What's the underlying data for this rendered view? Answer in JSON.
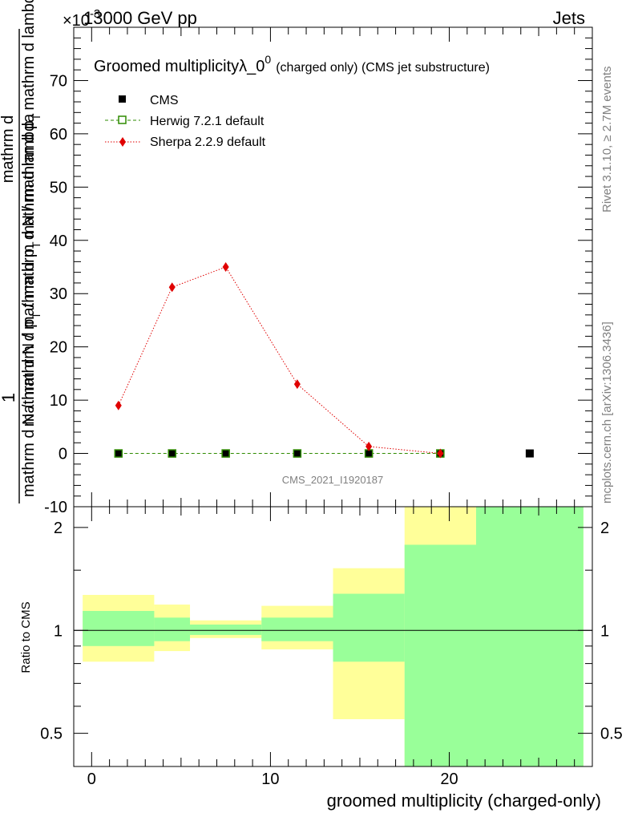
{
  "header": {
    "energy_label": "13000 GeV pp",
    "category_label": "Jets"
  },
  "side_labels": {
    "rivet": "Rivet 3.1.10, ≥ 2.7M events",
    "mcplots": "mcplots.cern.ch [arXiv:1306.3436]"
  },
  "chart_data": [
    {
      "type": "scatter",
      "panel": "main",
      "title_main": "Groomed multiplicityλ_0",
      "title_sup": "0",
      "title_suffix": "(charged only) (CMS jet substructure)",
      "ylabel_numerator": "1",
      "ylabel_numerator_full": "mathrm d",
      "ylabel_top": "mathrm d",
      "ylabel_denominator": "mathrm d N / mathrm d p",
      "ylabel_denominator_rest": "mathrm d lambda",
      "ylabel_sub": "T",
      "y_exponent_label": "×10",
      "y_exponent": "-3",
      "ylim": [
        -10,
        80
      ],
      "xlim": [
        -1,
        28
      ],
      "y_ticks": [
        -10,
        0,
        10,
        20,
        30,
        40,
        50,
        60,
        70
      ],
      "legend_position": "top-left",
      "analysis_label": "CMS_2021_I1920187",
      "series": [
        {
          "name": "CMS",
          "marker": "filled-square",
          "color": "#000000",
          "x": [
            1.5,
            4.5,
            7.5,
            11.5,
            15.5,
            19.5,
            24.5
          ],
          "y": [
            0,
            0,
            0,
            0,
            0,
            0,
            0
          ]
        },
        {
          "name": "Herwig 7.2.1 default",
          "marker": "open-square",
          "line": "dashed",
          "color": "#2e8b00",
          "x": [
            1.5,
            4.5,
            7.5,
            11.5,
            15.5,
            19.5
          ],
          "y": [
            0,
            0,
            0,
            0,
            0,
            0
          ]
        },
        {
          "name": "Sherpa 2.2.9 default",
          "marker": "diamond",
          "line": "dotted",
          "color": "#e00000",
          "x": [
            1.5,
            4.5,
            7.5,
            11.5,
            15.5,
            19.5
          ],
          "y": [
            9.0,
            31.2,
            35.0,
            13.0,
            1.3,
            0.0
          ]
        }
      ]
    },
    {
      "type": "area",
      "panel": "ratio",
      "ylabel": "Ratio to CMS",
      "scale": "log",
      "ylim": [
        0.4,
        2.3
      ],
      "xlim": [
        -1,
        28
      ],
      "xlabel": "groomed multiplicity (charged-only)",
      "x_ticks": [
        0,
        10,
        20
      ],
      "y_ticks": [
        0.5,
        1,
        2
      ],
      "y_tick_labels": [
        "0.5",
        "1",
        "2"
      ],
      "reference_line": 1,
      "bins": [
        {
          "xlo": -0.5,
          "xhi": 3.5,
          "yellow": [
            0.81,
            1.27
          ],
          "green": [
            0.9,
            1.14
          ]
        },
        {
          "xlo": 3.5,
          "xhi": 5.5,
          "yellow": [
            0.87,
            1.19
          ],
          "green": [
            0.93,
            1.09
          ]
        },
        {
          "xlo": 5.5,
          "xhi": 9.5,
          "yellow": [
            0.95,
            1.07
          ],
          "green": [
            0.97,
            1.04
          ]
        },
        {
          "xlo": 9.5,
          "xhi": 13.5,
          "yellow": [
            0.88,
            1.18
          ],
          "green": [
            0.93,
            1.09
          ]
        },
        {
          "xlo": 13.5,
          "xhi": 17.5,
          "yellow": [
            0.55,
            1.52
          ],
          "green": [
            0.81,
            1.28
          ]
        },
        {
          "xlo": 17.5,
          "xhi": 21.5,
          "yellow": [
            0.4,
            2.3
          ],
          "green": [
            0.4,
            1.78
          ]
        },
        {
          "xlo": 21.5,
          "xhi": 27.5,
          "yellow": [
            0.4,
            2.3
          ],
          "green": [
            0.4,
            2.3
          ]
        }
      ],
      "colors": {
        "yellow": "#ffff99",
        "green": "#99ff99"
      }
    }
  ]
}
